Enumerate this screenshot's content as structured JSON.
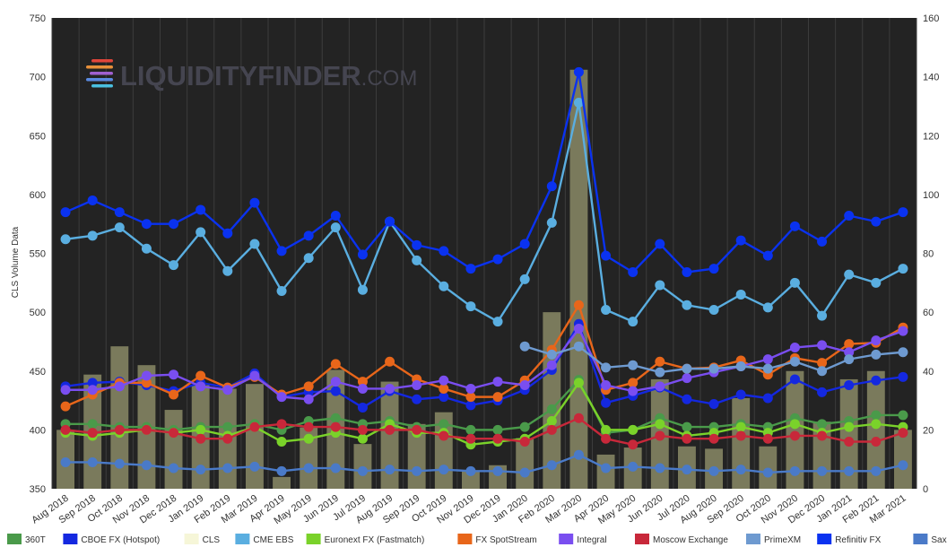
{
  "watermark": {
    "brand": "LIQUIDITY",
    "brand2": "FINDER",
    "suffix": ".COM"
  },
  "chart_data": {
    "type": "line",
    "categories": [
      "Aug 2018",
      "Sep 2018",
      "Oct 2018",
      "Nov 2018",
      "Dec 2018",
      "Jan 2019",
      "Feb 2019",
      "Mar 2019",
      "Apr 2019",
      "May 2019",
      "Jun 2019",
      "Jul 2019",
      "Aug 2019",
      "Sep 2019",
      "Oct 2019",
      "Nov 2019",
      "Dec 2019",
      "Jan 2020",
      "Feb 2020",
      "Mar 2020",
      "Apr 2020",
      "May 2020",
      "Jun 2020",
      "Jul 2020",
      "Aug 2020",
      "Sep 2020",
      "Oct 2020",
      "Nov 2020",
      "Dec 2020",
      "Jan 2021",
      "Feb 2021",
      "Mar 2021"
    ],
    "ylabel": "CLS Volume Data",
    "ylim": [
      350,
      750
    ],
    "y_ticks": [
      350,
      400,
      450,
      500,
      550,
      600,
      650,
      700,
      750
    ],
    "y2lim": [
      0,
      160
    ],
    "y2_ticks": [
      0,
      20,
      40,
      60,
      80,
      100,
      120,
      140,
      160
    ],
    "grid": "vertical",
    "legend": "bottom",
    "bar_series": {
      "name": "CLS",
      "axis": "left",
      "color": "#b0b080",
      "values": [
        400,
        447,
        471,
        455,
        417,
        438,
        435,
        439,
        360,
        402,
        451,
        388,
        441,
        405,
        415,
        365,
        370,
        393,
        500,
        706,
        379,
        385,
        443,
        386,
        384,
        427,
        386,
        450,
        407,
        443,
        450,
        400
      ]
    },
    "series": [
      {
        "name": "360T",
        "color": "#4a9a4a",
        "axis": "right",
        "values": [
          22,
          22,
          21,
          21,
          20,
          21,
          21,
          22,
          20,
          23,
          24,
          22,
          23,
          21,
          22,
          20,
          20,
          21,
          27,
          37,
          19,
          20,
          24,
          21,
          21,
          22,
          21,
          24,
          22,
          23,
          25,
          25
        ]
      },
      {
        "name": "CBOE FX (Hotspot)",
        "color": "#1428e0",
        "axis": "left",
        "values": [
          437,
          440,
          441,
          438,
          433,
          440,
          436,
          448,
          428,
          432,
          433,
          419,
          433,
          426,
          428,
          421,
          425,
          434,
          451,
          490,
          423,
          429,
          436,
          426,
          422,
          430,
          427,
          443,
          432,
          438,
          442,
          445
        ]
      },
      {
        "name": "CME EBS",
        "color": "#5aaee0",
        "axis": "left",
        "values": [
          562,
          565,
          572,
          554,
          540,
          568,
          535,
          558,
          518,
          546,
          572,
          519,
          577,
          544,
          522,
          505,
          492,
          528,
          576,
          678,
          502,
          492,
          523,
          506,
          502,
          515,
          504,
          525,
          497,
          532,
          525,
          537
        ]
      },
      {
        "name": "Euronext FX (Fastmatch)",
        "color": "#7ad22a",
        "axis": "right",
        "values": [
          19,
          18,
          19,
          20,
          19,
          20,
          18,
          21,
          16,
          17,
          19,
          17,
          22,
          19,
          19,
          15,
          16,
          17,
          23,
          36,
          20,
          20,
          22,
          18,
          19,
          21,
          19,
          22,
          19,
          21,
          22,
          21
        ]
      },
      {
        "name": "FX SpotStream",
        "color": "#e8661a",
        "axis": "left",
        "values": [
          420,
          430,
          440,
          440,
          430,
          446,
          436,
          445,
          430,
          437,
          456,
          441,
          458,
          443,
          435,
          428,
          428,
          442,
          468,
          506,
          434,
          440,
          458,
          452,
          453,
          459,
          447,
          461,
          457,
          473,
          474,
          487
        ]
      },
      {
        "name": "Integral",
        "color": "#7a4ef0",
        "axis": "left",
        "values": [
          434,
          434,
          437,
          446,
          447,
          437,
          434,
          446,
          428,
          426,
          441,
          435,
          435,
          438,
          442,
          435,
          441,
          438,
          455,
          486,
          438,
          433,
          437,
          444,
          449,
          454,
          460,
          470,
          472,
          466,
          476,
          484
        ]
      },
      {
        "name": "Moscow Exchange",
        "color": "#c8283a",
        "axis": "right",
        "values": [
          20,
          19,
          20,
          20,
          19,
          17,
          17,
          21,
          22,
          21,
          21,
          20,
          20,
          20,
          18,
          17,
          17,
          16,
          20,
          24,
          17,
          15,
          18,
          17,
          17,
          18,
          17,
          18,
          18,
          16,
          16,
          19
        ]
      },
      {
        "name": "PrimeXM",
        "color": "#6e9ad0",
        "axis": "left",
        "values": [
          null,
          null,
          null,
          null,
          null,
          null,
          null,
          null,
          null,
          null,
          null,
          null,
          null,
          null,
          null,
          null,
          null,
          471,
          464,
          471,
          453,
          455,
          449,
          452,
          452,
          454,
          452,
          458,
          450,
          460,
          464,
          466
        ]
      },
      {
        "name": "Refinitiv FX",
        "color": "#0a32f0",
        "axis": "left",
        "values": [
          585,
          595,
          585,
          575,
          575,
          587,
          567,
          593,
          552,
          565,
          582,
          549,
          577,
          557,
          552,
          537,
          545,
          558,
          607,
          704,
          548,
          534,
          558,
          534,
          537,
          561,
          548,
          573,
          560,
          582,
          577,
          585
        ]
      },
      {
        "name": "Saxo Bank",
        "color": "#4a7ac8",
        "axis": "right",
        "values": [
          9,
          9,
          8.5,
          8,
          7,
          6.5,
          7,
          7.5,
          6,
          7,
          7,
          6,
          6.5,
          6,
          6.5,
          6,
          6,
          5.5,
          8,
          11.5,
          7,
          7.5,
          7,
          6.5,
          6,
          6.5,
          5.5,
          6,
          6,
          6,
          6,
          8
        ]
      }
    ]
  }
}
